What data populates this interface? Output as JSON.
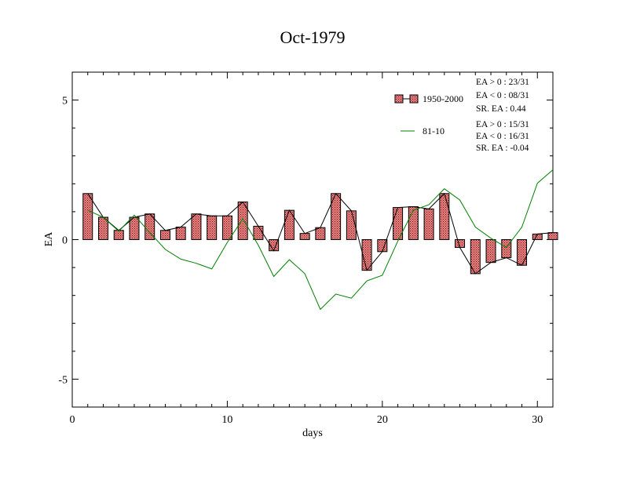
{
  "chart_data": {
    "type": "bar",
    "title": "Oct-1979",
    "xlabel": "days",
    "ylabel": "EA",
    "xlim": [
      0,
      31
    ],
    "ylim": [
      -6,
      6
    ],
    "x_ticks": [
      0,
      10,
      20,
      30
    ],
    "y_ticks": [
      -5,
      0,
      5
    ],
    "grid": false,
    "legend_position": "top-right",
    "days": [
      1,
      2,
      3,
      4,
      5,
      6,
      7,
      8,
      9,
      10,
      11,
      12,
      13,
      14,
      15,
      16,
      17,
      18,
      19,
      20,
      21,
      22,
      23,
      24,
      25,
      26,
      27,
      28,
      29,
      30,
      31
    ],
    "series": [
      {
        "name": "1950-2000",
        "kind": "bar+line",
        "bar_fill": "#f08080",
        "line_color": "#000000",
        "values": [
          1.65,
          0.8,
          0.33,
          0.8,
          0.92,
          0.33,
          0.45,
          0.92,
          0.85,
          0.85,
          1.35,
          0.48,
          -0.4,
          1.05,
          0.22,
          0.43,
          1.65,
          1.03,
          -1.1,
          -0.43,
          1.15,
          1.18,
          1.1,
          1.65,
          -0.28,
          -1.22,
          -0.82,
          -0.65,
          -0.92,
          0.2,
          0.25
        ]
      },
      {
        "name": "81-10",
        "kind": "line",
        "line_color": "#008000",
        "values": [
          1.05,
          0.8,
          0.3,
          0.88,
          0.25,
          -0.35,
          -0.7,
          -0.85,
          -1.05,
          -0.1,
          0.75,
          -0.2,
          -1.32,
          -0.72,
          -1.22,
          -2.5,
          -1.95,
          -2.1,
          -1.48,
          -1.28,
          -0.05,
          1.05,
          1.25,
          1.82,
          1.42,
          0.45,
          0.05,
          -0.28,
          0.45,
          2.02,
          2.5
        ]
      }
    ],
    "annotations": [
      {
        "series": "1950-2000",
        "lines": [
          "EA > 0 : 23/31",
          "EA < 0 : 08/31",
          "SR. EA :  0.44"
        ]
      },
      {
        "series": "81-10",
        "lines": [
          "EA > 0 : 15/31",
          "EA < 0 : 16/31",
          "SR. EA : -0.04"
        ]
      }
    ]
  }
}
